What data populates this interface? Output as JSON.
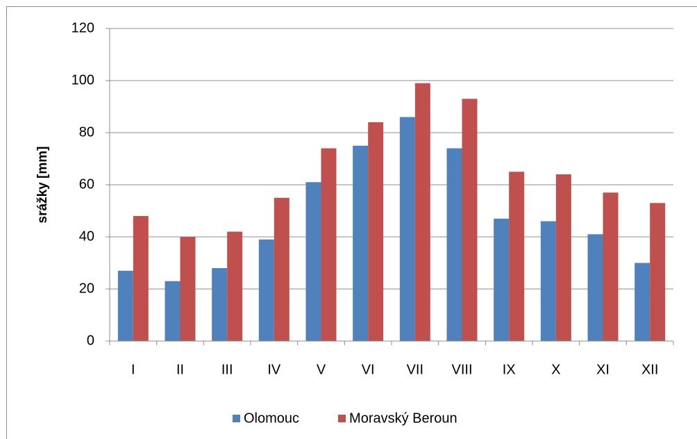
{
  "chart_data": {
    "type": "bar",
    "y_label": "srážky [mm]",
    "categories": [
      "I",
      "II",
      "III",
      "IV",
      "V",
      "VI",
      "VII",
      "VIII",
      "IX",
      "X",
      "XI",
      "XII"
    ],
    "series": [
      {
        "name": "Olomouc",
        "color": "#4f81bd",
        "values": [
          27,
          23,
          28,
          39,
          61,
          75,
          86,
          74,
          47,
          46,
          41,
          30
        ]
      },
      {
        "name": "Moravský Beroun",
        "color": "#c0504d",
        "values": [
          48,
          40,
          42,
          55,
          74,
          84,
          99,
          93,
          65,
          64,
          57,
          53
        ]
      }
    ],
    "ylim": [
      0,
      120
    ],
    "yticks": [
      0,
      20,
      40,
      60,
      80,
      100,
      120
    ],
    "grid": true,
    "legend": "bottom"
  }
}
